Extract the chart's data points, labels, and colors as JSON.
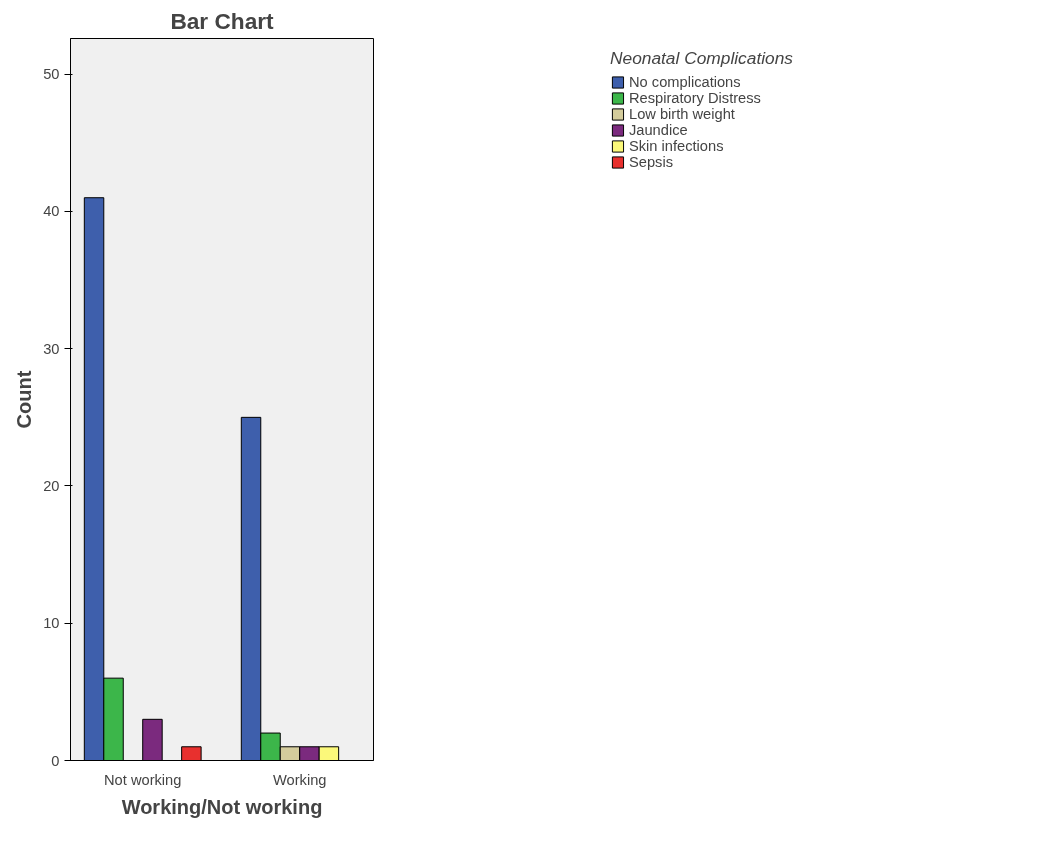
{
  "chart_data": {
    "type": "bar",
    "title": "Bar Chart",
    "xlabel": "Working/Not working",
    "ylabel": "Count",
    "legend_title": "Neonatal Complications",
    "categories": [
      "Not working",
      "Working"
    ],
    "series": [
      {
        "name": "No complications",
        "color": "#3e5fac",
        "values": [
          41,
          25
        ]
      },
      {
        "name": "Respiratory Distress",
        "color": "#3cb64a",
        "values": [
          6,
          2
        ]
      },
      {
        "name": "Low birth weight",
        "color": "#d4cc9c",
        "values": [
          null,
          1
        ]
      },
      {
        "name": "Jaundice",
        "color": "#7b2a7e",
        "values": [
          3,
          1
        ]
      },
      {
        "name": "Skin infections",
        "color": "#fbf87a",
        "values": [
          null,
          1
        ]
      },
      {
        "name": "Sepsis",
        "color": "#e8302e",
        "values": [
          1,
          null
        ]
      }
    ],
    "ylim": [
      0,
      52.6
    ],
    "yticks": [
      0,
      10,
      20,
      30,
      40,
      50
    ],
    "grid": false,
    "legend": "right"
  }
}
